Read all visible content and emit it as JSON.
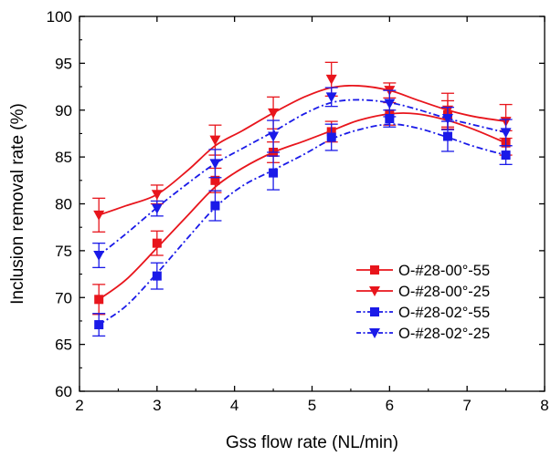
{
  "chart_data": {
    "type": "line",
    "title": "",
    "xlabel": "Gss flow rate (NL/min)",
    "ylabel": "Inclusion removal rate (%)",
    "xlim": [
      2,
      8
    ],
    "ylim": [
      60,
      100
    ],
    "xticks": [
      "2",
      "3",
      "4",
      "5",
      "6",
      "7",
      "8"
    ],
    "yticks": [
      "60",
      "65",
      "70",
      "75",
      "80",
      "85",
      "90",
      "95",
      "100"
    ],
    "grid": false,
    "legend_position": "bottom-right",
    "series": [
      {
        "name": "O-#28-00°-55",
        "color": "#e8151c",
        "marker": "square",
        "line_style": "solid",
        "x": [
          2.25,
          3.0,
          3.75,
          4.5,
          5.25,
          6.0,
          6.75,
          7.5
        ],
        "y": [
          69.8,
          75.8,
          82.5,
          85.5,
          87.7,
          89.6,
          89.5,
          86.5
        ],
        "err": [
          1.6,
          1.3,
          1.3,
          1.1,
          1.1,
          1.2,
          1.5,
          1.3
        ],
        "fit": [
          [
            2.25,
            69.8
          ],
          [
            2.6,
            71.9
          ],
          [
            3.0,
            75.3
          ],
          [
            3.4,
            78.8
          ],
          [
            3.75,
            81.8
          ],
          [
            4.1,
            83.8
          ],
          [
            4.5,
            85.5
          ],
          [
            4.9,
            86.7
          ],
          [
            5.25,
            87.8
          ],
          [
            5.6,
            88.9
          ],
          [
            6.0,
            89.6
          ],
          [
            6.35,
            89.6
          ],
          [
            6.75,
            88.9
          ],
          [
            7.1,
            87.9
          ],
          [
            7.5,
            86.5
          ]
        ]
      },
      {
        "name": "O-#28-00°-25",
        "color": "#e8151c",
        "marker": "triangle-down",
        "line_style": "solid",
        "x": [
          2.25,
          3.0,
          3.75,
          4.5,
          5.25,
          6.0,
          6.75,
          7.5
        ],
        "y": [
          78.8,
          81.0,
          86.8,
          89.7,
          93.3,
          92.1,
          90.0,
          88.8
        ],
        "err": [
          1.8,
          1.0,
          1.6,
          1.7,
          1.8,
          0.8,
          1.8,
          1.8
        ],
        "fit": [
          [
            2.25,
            78.8
          ],
          [
            2.6,
            79.8
          ],
          [
            3.0,
            81.0
          ],
          [
            3.4,
            83.6
          ],
          [
            3.75,
            86.2
          ],
          [
            4.1,
            87.8
          ],
          [
            4.5,
            89.7
          ],
          [
            4.9,
            91.4
          ],
          [
            5.25,
            92.4
          ],
          [
            5.6,
            92.6
          ],
          [
            6.0,
            92.1
          ],
          [
            6.35,
            91.1
          ],
          [
            6.75,
            90.0
          ],
          [
            7.1,
            89.3
          ],
          [
            7.5,
            88.8
          ]
        ]
      },
      {
        "name": "O-#28-02°-55",
        "color": "#1a1ae8",
        "marker": "square",
        "line_style": "dash-dot",
        "x": [
          2.25,
          3.0,
          3.75,
          4.5,
          5.25,
          6.0,
          6.75,
          7.5
        ],
        "y": [
          67.1,
          72.3,
          79.8,
          83.3,
          87.1,
          89.1,
          87.2,
          85.2
        ],
        "err": [
          1.2,
          1.4,
          1.6,
          1.8,
          1.4,
          0.9,
          1.6,
          1.0
        ],
        "fit": [
          [
            2.25,
            67.1
          ],
          [
            2.6,
            69.1
          ],
          [
            3.0,
            72.6
          ],
          [
            3.4,
            76.4
          ],
          [
            3.75,
            79.6
          ],
          [
            4.1,
            81.9
          ],
          [
            4.5,
            83.6
          ],
          [
            4.9,
            85.3
          ],
          [
            5.25,
            86.9
          ],
          [
            5.6,
            87.9
          ],
          [
            6.0,
            88.5
          ],
          [
            6.35,
            88.1
          ],
          [
            6.75,
            87.1
          ],
          [
            7.1,
            86.1
          ],
          [
            7.5,
            85.2
          ]
        ]
      },
      {
        "name": "O-#28-02°-25",
        "color": "#1a1ae8",
        "marker": "triangle-down",
        "line_style": "dash-dot",
        "x": [
          2.25,
          3.0,
          3.75,
          4.5,
          5.25,
          6.0,
          6.75,
          7.5
        ],
        "y": [
          74.5,
          79.5,
          84.3,
          87.2,
          91.4,
          90.7,
          89.1,
          87.6
        ],
        "err": [
          1.3,
          0.8,
          1.5,
          1.7,
          1.0,
          1.4,
          1.2,
          1.4
        ],
        "fit": [
          [
            2.25,
            74.5
          ],
          [
            2.6,
            76.8
          ],
          [
            3.0,
            79.6
          ],
          [
            3.4,
            82.2
          ],
          [
            3.75,
            84.3
          ],
          [
            4.1,
            85.9
          ],
          [
            4.5,
            87.7
          ],
          [
            4.9,
            89.6
          ],
          [
            5.25,
            90.8
          ],
          [
            5.6,
            91.1
          ],
          [
            6.0,
            90.8
          ],
          [
            6.35,
            90.1
          ],
          [
            6.75,
            89.1
          ],
          [
            7.1,
            88.4
          ],
          [
            7.5,
            87.6
          ]
        ]
      }
    ]
  }
}
